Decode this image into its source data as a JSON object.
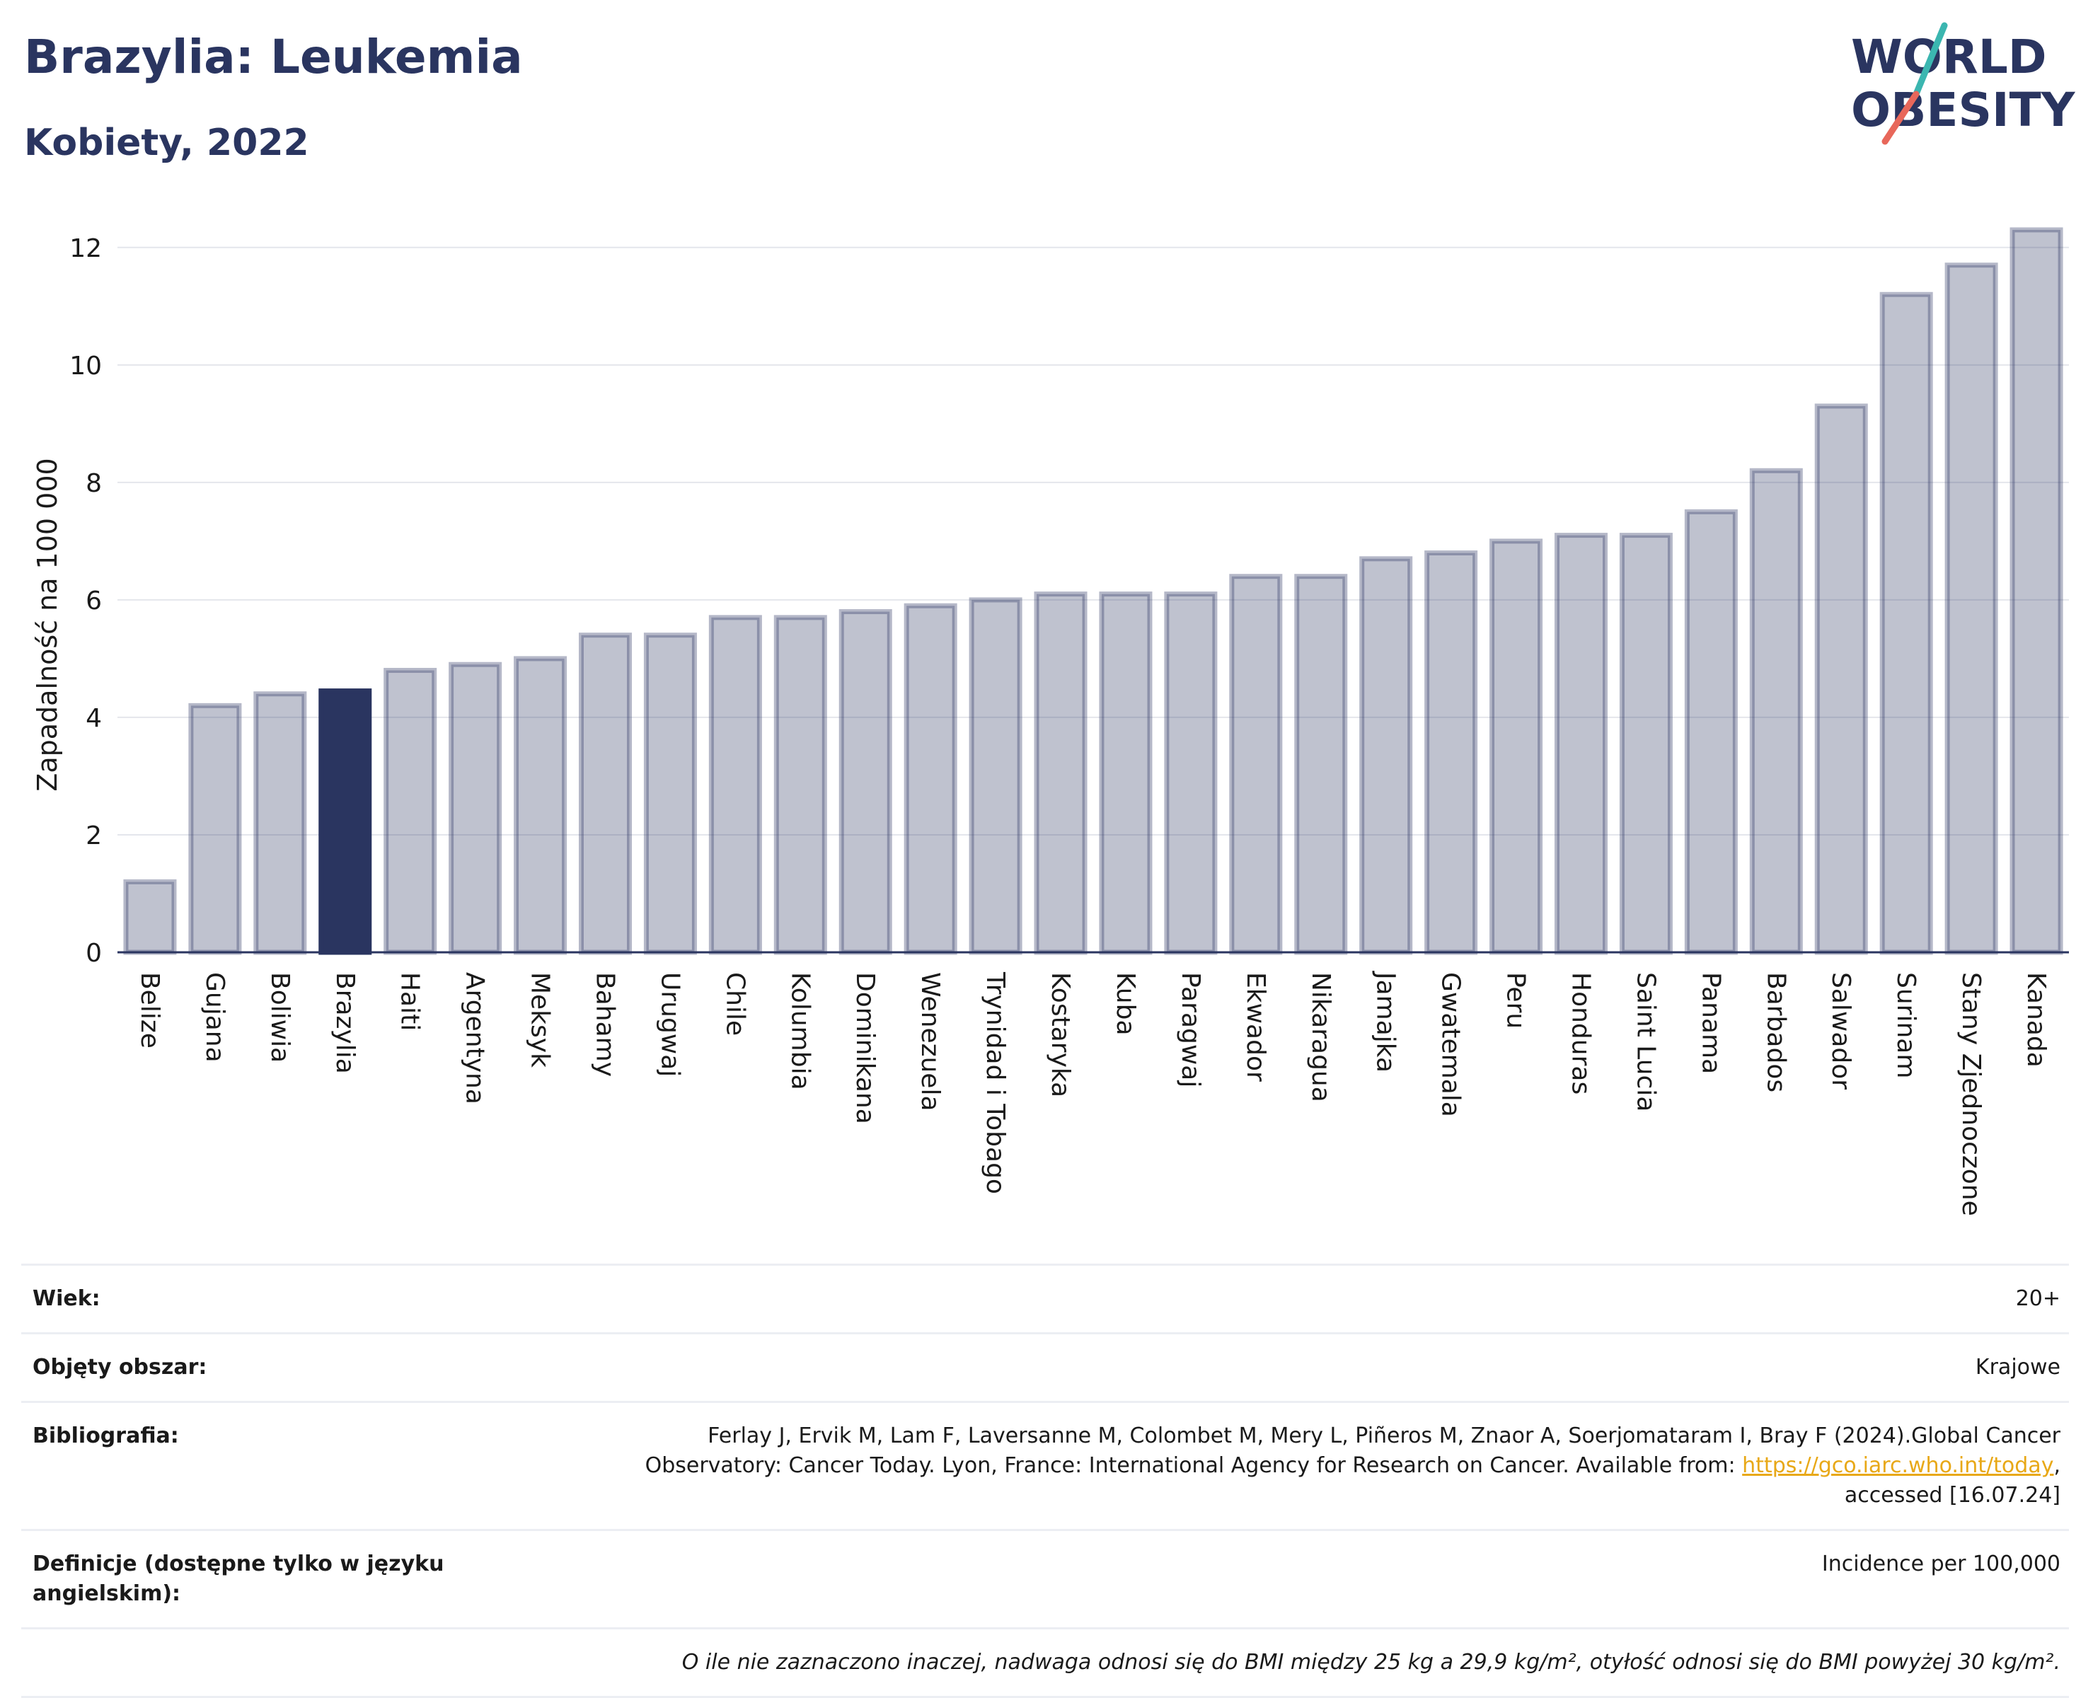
{
  "header": {
    "title": "Brazylia: Leukemia",
    "subtitle": "Kobiety, 2022"
  },
  "logo": {
    "line1": "WORLD",
    "line2": "OBESITY"
  },
  "chart_data": {
    "type": "bar",
    "ylabel": "Zapadalność na 100 000",
    "ylim": [
      0,
      12.6
    ],
    "yticks": [
      0,
      2,
      4,
      6,
      8,
      10,
      12
    ],
    "grid": true,
    "highlight": "Brazylia",
    "colors": {
      "bar": "#2a3560",
      "highlight": "#2a3560"
    },
    "categories": [
      "Belize",
      "Gujana",
      "Boliwia",
      "Brazylia",
      "Haiti",
      "Argentyna",
      "Meksyk",
      "Bahamy",
      "Urugwaj",
      "Chile",
      "Kolumbia",
      "Dominikana",
      "Wenezuela",
      "Trynidad i Tobago",
      "Kostaryka",
      "Kuba",
      "Paragwaj",
      "Ekwador",
      "Nikaragua",
      "Jamajka",
      "Gwatemala",
      "Peru",
      "Honduras",
      "Saint Lucia",
      "Panama",
      "Barbados",
      "Salwador",
      "Surinam",
      "Stany Zjednoczone",
      "Kanada"
    ],
    "values": [
      1.2,
      4.2,
      4.4,
      4.45,
      4.8,
      4.9,
      5.0,
      5.4,
      5.4,
      5.7,
      5.7,
      5.8,
      5.9,
      6.0,
      6.1,
      6.1,
      6.1,
      6.4,
      6.4,
      6.7,
      6.8,
      7.0,
      7.1,
      7.1,
      7.5,
      8.2,
      9.3,
      11.2,
      11.7,
      12.3
    ]
  },
  "info": {
    "age_label": "Wiek:",
    "age_value": "20+",
    "coverage_label": "Objęty obszar:",
    "coverage_value": "Krajowe",
    "bib_label": "Bibliografia:",
    "bib_text_1": "Ferlay J, Ervik M, Lam F, Laversanne M, Colombet M, Mery L, Piñeros M, Znaor A, Soerjomataram I, Bray F (2024).Global Cancer",
    "bib_text_2": "Observatory: Cancer Today. Lyon, France: International Agency for Research on Cancer. Available from: ",
    "bib_link": "https://gco.iarc.who.int/today",
    "bib_text_3": ",",
    "bib_text_4": "accessed [16.07.24]",
    "def_label": "Definicje (dostępne tylko w języku angielskim):",
    "def_value": "Incidence per 100,000",
    "note": "O ile nie zaznaczono inaczej, nadwaga odnosi się do BMI między 25 kg a 29,9 kg/m², otyłość odnosi się do BMI powyżej 30 kg/m²."
  }
}
